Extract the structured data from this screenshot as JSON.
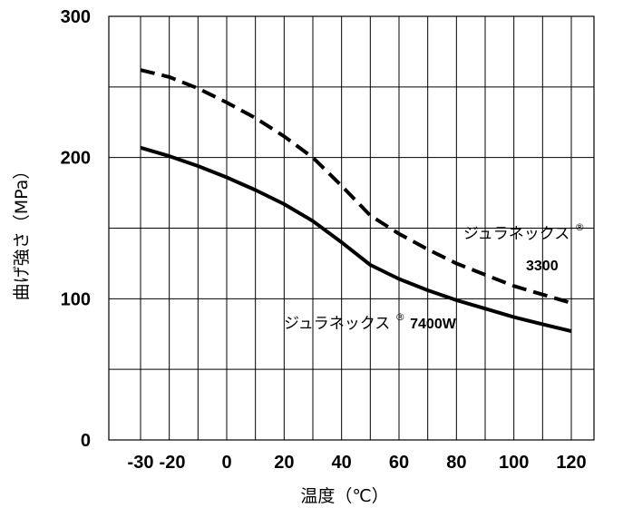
{
  "chart_data": {
    "type": "line",
    "xlabel": "温度（℃）",
    "ylabel": "曲げ強さ（MPa）",
    "xlim": [
      -30,
      120
    ],
    "ylim": [
      0,
      300
    ],
    "x_ticks": [
      "-30",
      "-20",
      "0",
      "20",
      "40",
      "60",
      "80",
      "100",
      "120"
    ],
    "y_ticks": [
      "0",
      "100",
      "200",
      "300"
    ],
    "grid": true,
    "series": [
      {
        "name": "ジュラネックス®3300",
        "style": "dashed",
        "color": "#000000",
        "x": [
          -30,
          -20,
          -10,
          0,
          10,
          20,
          30,
          40,
          50,
          60,
          70,
          80,
          90,
          100,
          110,
          120
        ],
        "y": [
          262,
          257,
          249,
          239,
          228,
          215,
          200,
          180,
          159,
          146,
          135,
          125,
          117,
          109,
          103,
          97
        ]
      },
      {
        "name": "ジュラネックス®7400W",
        "style": "solid",
        "color": "#000000",
        "x": [
          -30,
          -20,
          -10,
          0,
          10,
          20,
          30,
          40,
          50,
          60,
          70,
          80,
          90,
          100,
          110,
          120
        ],
        "y": [
          207,
          201,
          194,
          186,
          177,
          167,
          155,
          140,
          124,
          114,
          106,
          99,
          93,
          87,
          82,
          77
        ]
      }
    ],
    "annotations": [
      {
        "series": 0,
        "line1": "ジュラネックス",
        "mark": "®",
        "line2": "3300"
      },
      {
        "series": 1,
        "text": "ジュラネックス",
        "mark": "®",
        "suffix": "7400W"
      }
    ]
  }
}
